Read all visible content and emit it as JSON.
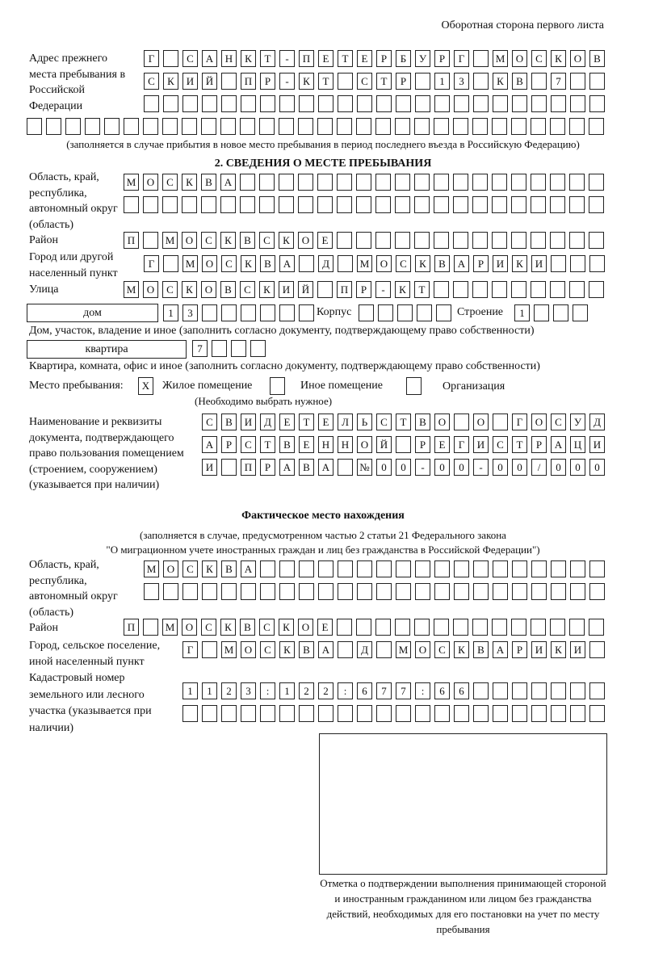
{
  "header": "Оборотная сторона первого листа",
  "prev_address": {
    "label": "Адрес прежнего места пребывания в Российской Федерации",
    "rows": [
      [
        "Г",
        "",
        "С",
        "А",
        "Н",
        "К",
        "Т",
        "-",
        "П",
        "Е",
        "Т",
        "Е",
        "Р",
        "Б",
        "У",
        "Р",
        "Г",
        "",
        "М",
        "О",
        "С",
        "К",
        "О",
        "В"
      ],
      [
        "С",
        "К",
        "И",
        "Й",
        "",
        "П",
        "Р",
        "-",
        "К",
        "Т",
        "",
        "С",
        "Т",
        "Р",
        "",
        "1",
        "3",
        "",
        "К",
        "В",
        "",
        "7",
        "",
        ""
      ],
      [
        "",
        "",
        "",
        "",
        "",
        "",
        "",
        "",
        "",
        "",
        "",
        "",
        "",
        "",
        "",
        "",
        "",
        "",
        "",
        "",
        "",
        "",
        "",
        ""
      ],
      [
        "",
        "",
        "",
        "",
        "",
        "",
        "",
        "",
        "",
        "",
        "",
        "",
        "",
        "",
        "",
        "",
        "",
        "",
        "",
        "",
        "",
        "",
        "",
        "",
        "",
        "",
        "",
        "",
        "",
        ""
      ]
    ],
    "note": "(заполняется в случае прибытия в новое место пребывания в период последнего въезда в Российскую Федерацию)"
  },
  "section2": {
    "title": "2. СВЕДЕНИЯ О МЕСТЕ ПРЕБЫВАНИЯ",
    "region_label": "Область, край, республика, автономный округ (область)",
    "region_rows": [
      [
        "М",
        "О",
        "С",
        "К",
        "В",
        "А",
        "",
        "",
        "",
        "",
        "",
        "",
        "",
        "",
        "",
        "",
        "",
        "",
        "",
        "",
        "",
        "",
        "",
        "",
        ""
      ],
      [
        "",
        "",
        "",
        "",
        "",
        "",
        "",
        "",
        "",
        "",
        "",
        "",
        "",
        "",
        "",
        "",
        "",
        "",
        "",
        "",
        "",
        "",
        "",
        "",
        ""
      ]
    ],
    "district_label": "Район",
    "district": [
      "П",
      "",
      "М",
      "О",
      "С",
      "К",
      "В",
      "С",
      "К",
      "О",
      "Е",
      "",
      "",
      "",
      "",
      "",
      "",
      "",
      "",
      "",
      "",
      "",
      "",
      "",
      ""
    ],
    "city_label": "Город или другой населенный пункт",
    "city": [
      "Г",
      "",
      "М",
      "О",
      "С",
      "К",
      "В",
      "А",
      "",
      "Д",
      "",
      "М",
      "О",
      "С",
      "К",
      "В",
      "А",
      "Р",
      "И",
      "К",
      "И",
      "",
      "",
      ""
    ],
    "street_label": "Улица",
    "street": [
      "М",
      "О",
      "С",
      "К",
      "О",
      "В",
      "С",
      "К",
      "И",
      "Й",
      "",
      "П",
      "Р",
      "-",
      "К",
      "Т",
      "",
      "",
      "",
      "",
      "",
      "",
      "",
      "",
      ""
    ],
    "house_type": "дом",
    "house": [
      "1",
      "3",
      "",
      "",
      "",
      "",
      "",
      ""
    ],
    "korpus_label": "Корпус",
    "korpus": [
      "",
      "",
      "",
      "",
      ""
    ],
    "building_label": "Строение",
    "building": [
      "1",
      "",
      "",
      ""
    ],
    "house_note": "Дом, участок, владение и иное (заполнить согласно документу, подтверждающему право собственности)",
    "flat_type": "квартира",
    "flat": [
      "7",
      "",
      "",
      ""
    ],
    "flat_note": "Квартира, комната, офис и иное (заполнить согласно документу, подтверждающему право собственности)",
    "stay_label": "Место пребывания:",
    "stay_options": [
      {
        "label": "Жилое помещение",
        "mark": "X"
      },
      {
        "label": "Иное помещение",
        "mark": ""
      },
      {
        "label": "Организация",
        "mark": ""
      }
    ],
    "stay_note": "(Необходимо выбрать нужное)",
    "doc_label": "Наименование и реквизиты документа, подтверждающего право пользования помещением (строением, сооружением) (указывается при наличии)",
    "doc_rows": [
      [
        "С",
        "В",
        "И",
        "Д",
        "Е",
        "Т",
        "Е",
        "Л",
        "Ь",
        "С",
        "Т",
        "В",
        "О",
        "",
        "О",
        "",
        "Г",
        "О",
        "С",
        "У",
        "Д"
      ],
      [
        "А",
        "Р",
        "С",
        "Т",
        "В",
        "Е",
        "Н",
        "Н",
        "О",
        "Й",
        "",
        "Р",
        "Е",
        "Г",
        "И",
        "С",
        "Т",
        "Р",
        "А",
        "Ц",
        "И"
      ],
      [
        "И",
        "",
        "П",
        "Р",
        "А",
        "В",
        "А",
        "",
        "№",
        "0",
        "0",
        "-",
        "0",
        "0",
        "-",
        "0",
        "0",
        "/",
        "0",
        "0",
        "0"
      ]
    ]
  },
  "actual": {
    "title": "Фактическое место нахождения",
    "note1": "(заполняется в случае, предусмотренном частью 2 статьи 21 Федерального закона",
    "note2": "\"О миграционном учете иностранных граждан и лиц без гражданства в Российской Федерации\")",
    "region_label": "Область, край, республика, автономный округ (область)",
    "region_rows": [
      [
        "М",
        "О",
        "С",
        "К",
        "В",
        "А",
        "",
        "",
        "",
        "",
        "",
        "",
        "",
        "",
        "",
        "",
        "",
        "",
        "",
        "",
        "",
        "",
        "",
        ""
      ],
      [
        "",
        "",
        "",
        "",
        "",
        "",
        "",
        "",
        "",
        "",
        "",
        "",
        "",
        "",
        "",
        "",
        "",
        "",
        "",
        "",
        "",
        "",
        "",
        ""
      ]
    ],
    "district_label": "Район",
    "district": [
      "П",
      "",
      "М",
      "О",
      "С",
      "К",
      "В",
      "С",
      "К",
      "О",
      "Е",
      "",
      "",
      "",
      "",
      "",
      "",
      "",
      "",
      "",
      "",
      "",
      "",
      "",
      ""
    ],
    "city_label": "Город, сельское поселение, иной населенный пункт",
    "city": [
      "Г",
      "",
      "М",
      "О",
      "С",
      "К",
      "В",
      "А",
      "",
      "Д",
      "",
      "М",
      "О",
      "С",
      "К",
      "В",
      "А",
      "Р",
      "И",
      "К",
      "И",
      ""
    ],
    "cadastral_label": "Кадастровый номер земельного или лесного участка (указывается при наличии)",
    "cadastral_rows": [
      [
        "1",
        "1",
        "2",
        "3",
        ":",
        "1",
        "2",
        "2",
        ":",
        "6",
        "7",
        "7",
        ":",
        "6",
        "6",
        "",
        "",
        "",
        "",
        "",
        "",
        ""
      ],
      [
        "",
        "",
        "",
        "",
        "",
        "",
        "",
        "",
        "",
        "",
        "",
        "",
        "",
        "",
        "",
        "",
        "",
        "",
        "",
        "",
        "",
        ""
      ]
    ]
  },
  "stamp_caption": "Отметка о подтверждении выполнения принимающей стороной и иностранным гражданином или лицом без гражданства действий, необходимых для его постановки на учет по месту пребывания"
}
